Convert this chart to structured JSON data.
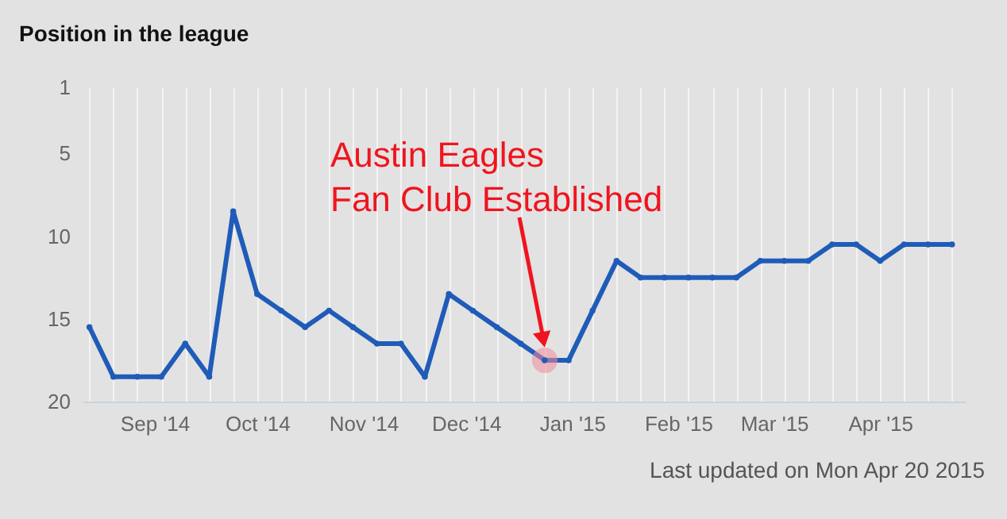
{
  "chart_data": {
    "type": "line",
    "title": "Position in the league",
    "annotations": [
      "Austin Eagles\nFan Club Established",
      "Last updated on Mon Apr 20 2015"
    ],
    "x": [
      "2014-08-13",
      "2014-08-20",
      "2014-08-27",
      "2014-09-03",
      "2014-09-10",
      "2014-09-17",
      "2014-09-24",
      "2014-10-01",
      "2014-10-08",
      "2014-10-15",
      "2014-10-22",
      "2014-10-29",
      "2014-11-05",
      "2014-11-12",
      "2014-11-19",
      "2014-11-26",
      "2014-12-03",
      "2014-12-10",
      "2014-12-17",
      "2014-12-24",
      "2014-12-31",
      "2015-01-07",
      "2015-01-14",
      "2015-01-21",
      "2015-01-28",
      "2015-02-04",
      "2015-02-11",
      "2015-02-18",
      "2015-02-25",
      "2015-03-04",
      "2015-03-11",
      "2015-03-18",
      "2015-03-25",
      "2015-04-01",
      "2015-04-08",
      "2015-04-15",
      "2015-04-22"
    ],
    "series": [
      {
        "color": "#1f5cb8",
        "values": [
          15.5,
          18.5,
          18.5,
          18.5,
          16.5,
          18.5,
          8.5,
          13.5,
          14.5,
          15.5,
          14.5,
          15.5,
          16.5,
          16.5,
          18.5,
          13.5,
          14.5,
          15.5,
          16.5,
          17.5,
          17.5,
          14.5,
          11.5,
          12.5,
          12.5,
          12.5,
          12.5,
          12.5,
          11.5,
          11.5,
          11.5,
          10.5,
          10.5,
          11.5,
          10.5,
          10.5,
          10.5
        ]
      }
    ],
    "xlim": [
      "2014-08-11",
      "2015-04-26"
    ],
    "ylim": [
      20,
      1
    ],
    "yticks": [
      1,
      5,
      10,
      15,
      20
    ],
    "xticks": [
      {
        "value": "2014-09-01",
        "label": "Sep '14"
      },
      {
        "value": "2014-10-01",
        "label": "Oct '14"
      },
      {
        "value": "2014-11-01",
        "label": "Nov '14"
      },
      {
        "value": "2014-12-01",
        "label": "Dec '14"
      },
      {
        "value": "2015-01-01",
        "label": "Jan '15"
      },
      {
        "value": "2015-02-01",
        "label": "Feb '15"
      },
      {
        "value": "2015-03-01",
        "label": "Mar '15"
      },
      {
        "value": "2015-04-01",
        "label": "Apr '15"
      }
    ],
    "grid": "x",
    "marker": "circle",
    "line_style": "solid"
  }
}
